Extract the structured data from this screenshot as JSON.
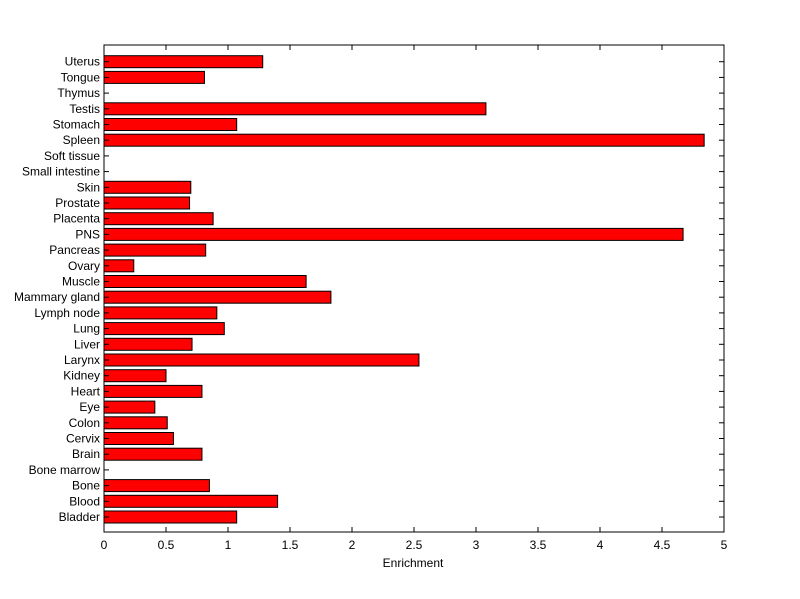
{
  "chart_data": {
    "type": "bar",
    "orientation": "horizontal",
    "categories": [
      "Bladder",
      "Blood",
      "Bone",
      "Bone marrow",
      "Brain",
      "Cervix",
      "Colon",
      "Eye",
      "Heart",
      "Kidney",
      "Larynx",
      "Liver",
      "Lung",
      "Lymph node",
      "Mammary gland",
      "Muscle",
      "Ovary",
      "Pancreas",
      "PNS",
      "Placenta",
      "Prostate",
      "Skin",
      "Small intestine",
      "Soft tissue",
      "Spleen",
      "Stomach",
      "Testis",
      "Thymus",
      "Tongue",
      "Uterus"
    ],
    "values": [
      1.07,
      1.4,
      0.85,
      0,
      0.79,
      0.56,
      0.51,
      0.41,
      0.79,
      0.5,
      2.54,
      0.71,
      0.97,
      0.91,
      1.83,
      1.63,
      0.24,
      0.82,
      4.67,
      0.88,
      0.69,
      0.7,
      0,
      0,
      4.84,
      1.07,
      3.08,
      0,
      0.81,
      1.28
    ],
    "title": "",
    "xlabel": "Enrichment",
    "ylabel": "",
    "xlim": [
      0,
      5
    ],
    "xticks": [
      "0",
      "0.5",
      "1",
      "1.5",
      "2",
      "2.5",
      "3",
      "3.5",
      "4",
      "4.5",
      "5"
    ],
    "bar_color": "#ff0000",
    "bar_edge_color": "#000000",
    "grid": false,
    "legend": "none"
  }
}
